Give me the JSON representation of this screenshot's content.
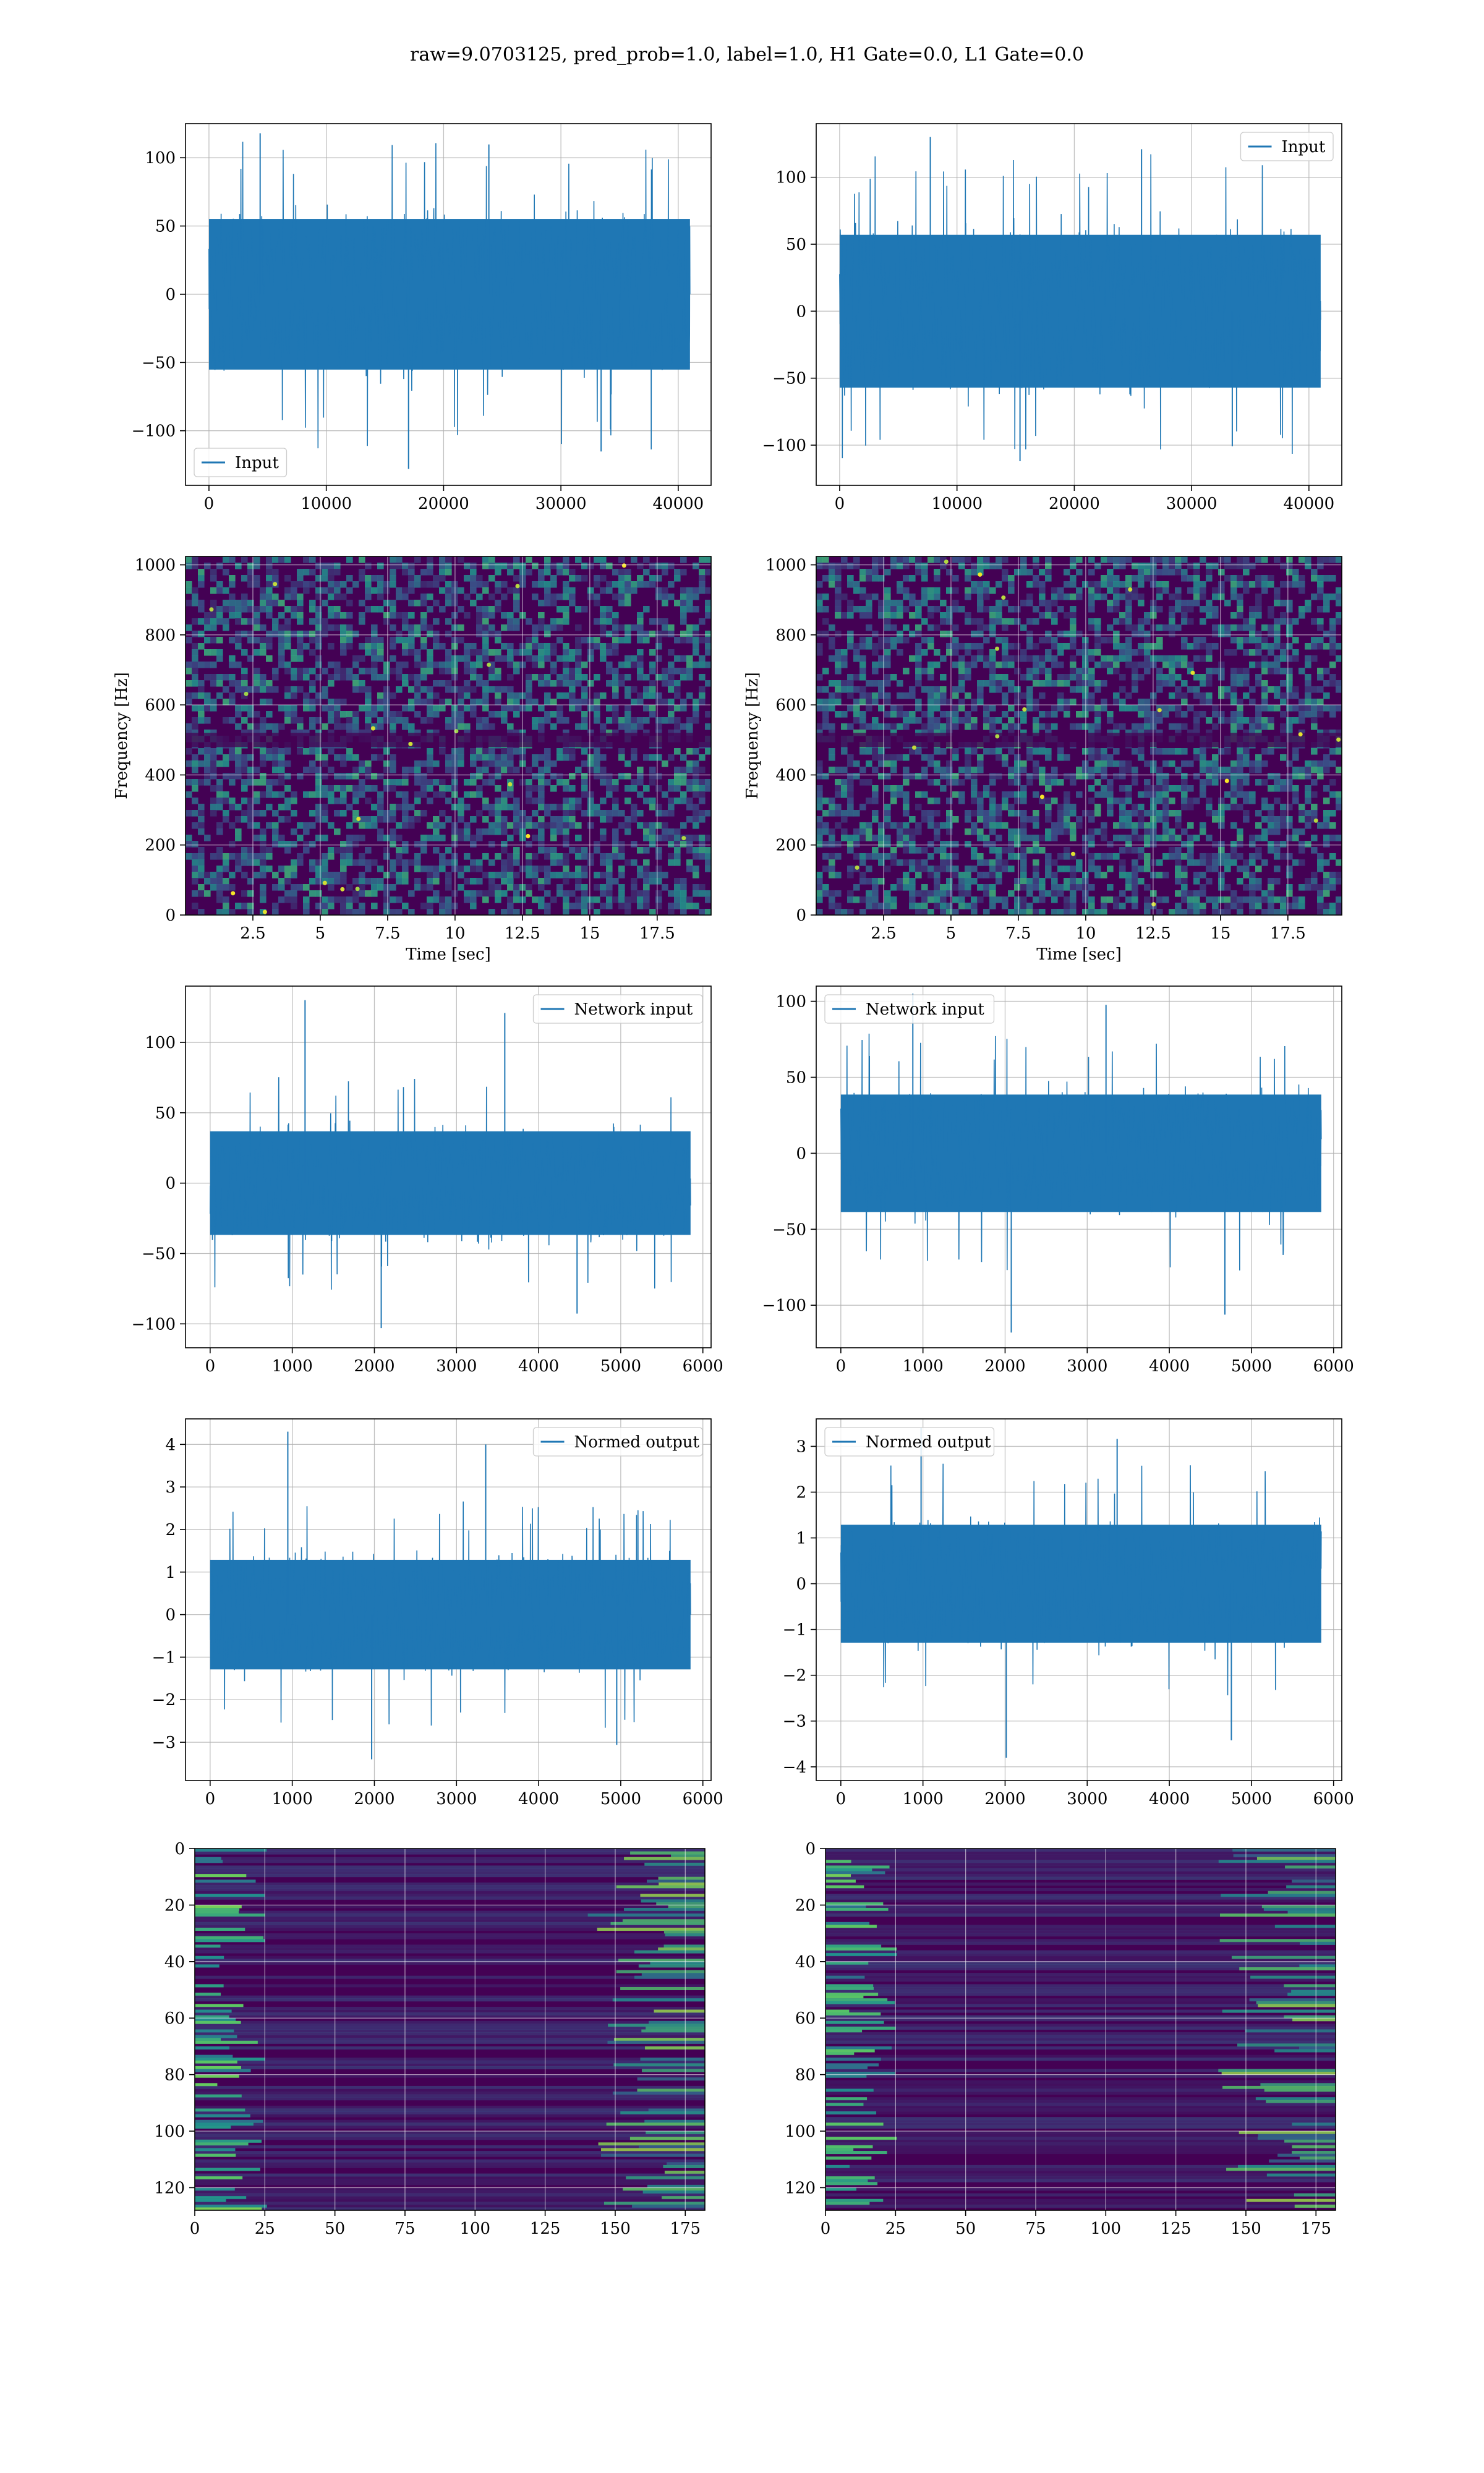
{
  "figure": {
    "suptitle": "raw=9.0703125, pred_prob=1.0, label=1.0, H1 Gate=0.0, L1 Gate=0.0"
  },
  "colors": {
    "line": "#1f77b4",
    "grid": "#b0b0b0",
    "axes": "#000000",
    "viridis_dark": "#440154",
    "viridis_teal": "#21918c",
    "viridis_green": "#5ec962",
    "viridis_yellow": "#fde725"
  },
  "chart_data": [
    {
      "id": "row1-left",
      "type": "line",
      "x": [
        0,
        41000
      ],
      "xlim": [
        -2000,
        42800
      ],
      "xticks": [
        0,
        10000,
        20000,
        30000,
        40000
      ],
      "ylim": [
        -140,
        125
      ],
      "yticks": [
        -100,
        -50,
        0,
        50,
        100
      ],
      "series": [
        {
          "name": "Input",
          "envelope": {
            "core": 60,
            "peak": 118,
            "trough": -128
          }
        }
      ],
      "legend": "lower-left",
      "grid": true,
      "xlabel": "",
      "ylabel": ""
    },
    {
      "id": "row1-right",
      "type": "line",
      "x": [
        0,
        41000
      ],
      "xlim": [
        -2000,
        42800
      ],
      "xticks": [
        0,
        10000,
        20000,
        30000,
        40000
      ],
      "ylim": [
        -130,
        140
      ],
      "yticks": [
        -100,
        -50,
        0,
        50,
        100
      ],
      "series": [
        {
          "name": "Input",
          "envelope": {
            "core": 62,
            "peak": 130,
            "trough": -112
          }
        }
      ],
      "legend": "upper-right",
      "grid": true,
      "xlabel": "",
      "ylabel": ""
    },
    {
      "id": "row2-left",
      "type": "heatmap",
      "xlim": [
        0,
        19.5
      ],
      "xticks": [
        2.5,
        5.0,
        7.5,
        10.0,
        12.5,
        15.0,
        17.5
      ],
      "ylim": [
        0,
        1024
      ],
      "yticks": [
        0,
        200,
        400,
        600,
        800,
        1000
      ],
      "xlabel": "Time [sec]",
      "ylabel": "Frequency [Hz]",
      "grid": true,
      "colormap": "viridis"
    },
    {
      "id": "row2-right",
      "type": "heatmap",
      "xlim": [
        0,
        19.5
      ],
      "xticks": [
        2.5,
        5.0,
        7.5,
        10.0,
        12.5,
        15.0,
        17.5
      ],
      "ylim": [
        0,
        1024
      ],
      "yticks": [
        0,
        200,
        400,
        600,
        800,
        1000
      ],
      "xlabel": "Time [sec]",
      "ylabel": "Frequency [Hz]",
      "grid": true,
      "colormap": "viridis"
    },
    {
      "id": "row3-left",
      "type": "line",
      "x": [
        0,
        5850
      ],
      "xlim": [
        -300,
        6100
      ],
      "xticks": [
        0,
        1000,
        2000,
        3000,
        4000,
        5000,
        6000
      ],
      "ylim": [
        -117,
        140
      ],
      "yticks": [
        -100,
        -50,
        0,
        50,
        100
      ],
      "series": [
        {
          "name": "Network input",
          "envelope": {
            "core": 40,
            "peak": 130,
            "trough": -103
          }
        }
      ],
      "legend": "upper-right",
      "grid": true,
      "xlabel": "",
      "ylabel": ""
    },
    {
      "id": "row3-right",
      "type": "line",
      "x": [
        0,
        5850
      ],
      "xlim": [
        -300,
        6100
      ],
      "xticks": [
        0,
        1000,
        2000,
        3000,
        4000,
        5000,
        6000
      ],
      "ylim": [
        -128,
        110
      ],
      "yticks": [
        -100,
        -50,
        0,
        50,
        100
      ],
      "series": [
        {
          "name": "Network input",
          "envelope": {
            "core": 42,
            "peak": 105,
            "trough": -118
          }
        }
      ],
      "legend": "upper-left",
      "grid": true,
      "xlabel": "",
      "ylabel": ""
    },
    {
      "id": "row4-left",
      "type": "line",
      "x": [
        0,
        5850
      ],
      "xlim": [
        -300,
        6100
      ],
      "xticks": [
        0,
        1000,
        2000,
        3000,
        4000,
        5000,
        6000
      ],
      "ylim": [
        -3.9,
        4.6
      ],
      "yticks": [
        -3,
        -2,
        -1,
        0,
        1,
        2,
        3,
        4
      ],
      "series": [
        {
          "name": "Normed output",
          "envelope": {
            "core": 1.4,
            "peak": 4.3,
            "trough": -3.4
          }
        }
      ],
      "legend": "upper-right",
      "grid": true,
      "xlabel": "",
      "ylabel": ""
    },
    {
      "id": "row4-right",
      "type": "line",
      "x": [
        0,
        5850
      ],
      "xlim": [
        -300,
        6100
      ],
      "xticks": [
        0,
        1000,
        2000,
        3000,
        4000,
        5000,
        6000
      ],
      "ylim": [
        -4.3,
        3.6
      ],
      "yticks": [
        -4,
        -3,
        -2,
        -1,
        0,
        1,
        2,
        3
      ],
      "series": [
        {
          "name": "Normed output",
          "envelope": {
            "core": 1.4,
            "peak": 3.4,
            "trough": -3.8
          }
        }
      ],
      "legend": "upper-left",
      "grid": true,
      "xlabel": "",
      "ylabel": ""
    },
    {
      "id": "row5-left",
      "type": "heatmap",
      "xlim": [
        0,
        182
      ],
      "xticks": [
        0,
        25,
        50,
        75,
        100,
        125,
        150,
        175
      ],
      "ylim": [
        128,
        0
      ],
      "yticks": [
        0,
        20,
        40,
        60,
        80,
        100,
        120
      ],
      "xlabel": "",
      "ylabel": "",
      "grid": true,
      "colormap": "viridis"
    },
    {
      "id": "row5-right",
      "type": "heatmap",
      "xlim": [
        0,
        182
      ],
      "xticks": [
        0,
        25,
        50,
        75,
        100,
        125,
        150,
        175
      ],
      "ylim": [
        128,
        0
      ],
      "yticks": [
        0,
        20,
        40,
        60,
        80,
        100,
        120
      ],
      "xlabel": "",
      "ylabel": "",
      "grid": true,
      "colormap": "viridis"
    }
  ]
}
